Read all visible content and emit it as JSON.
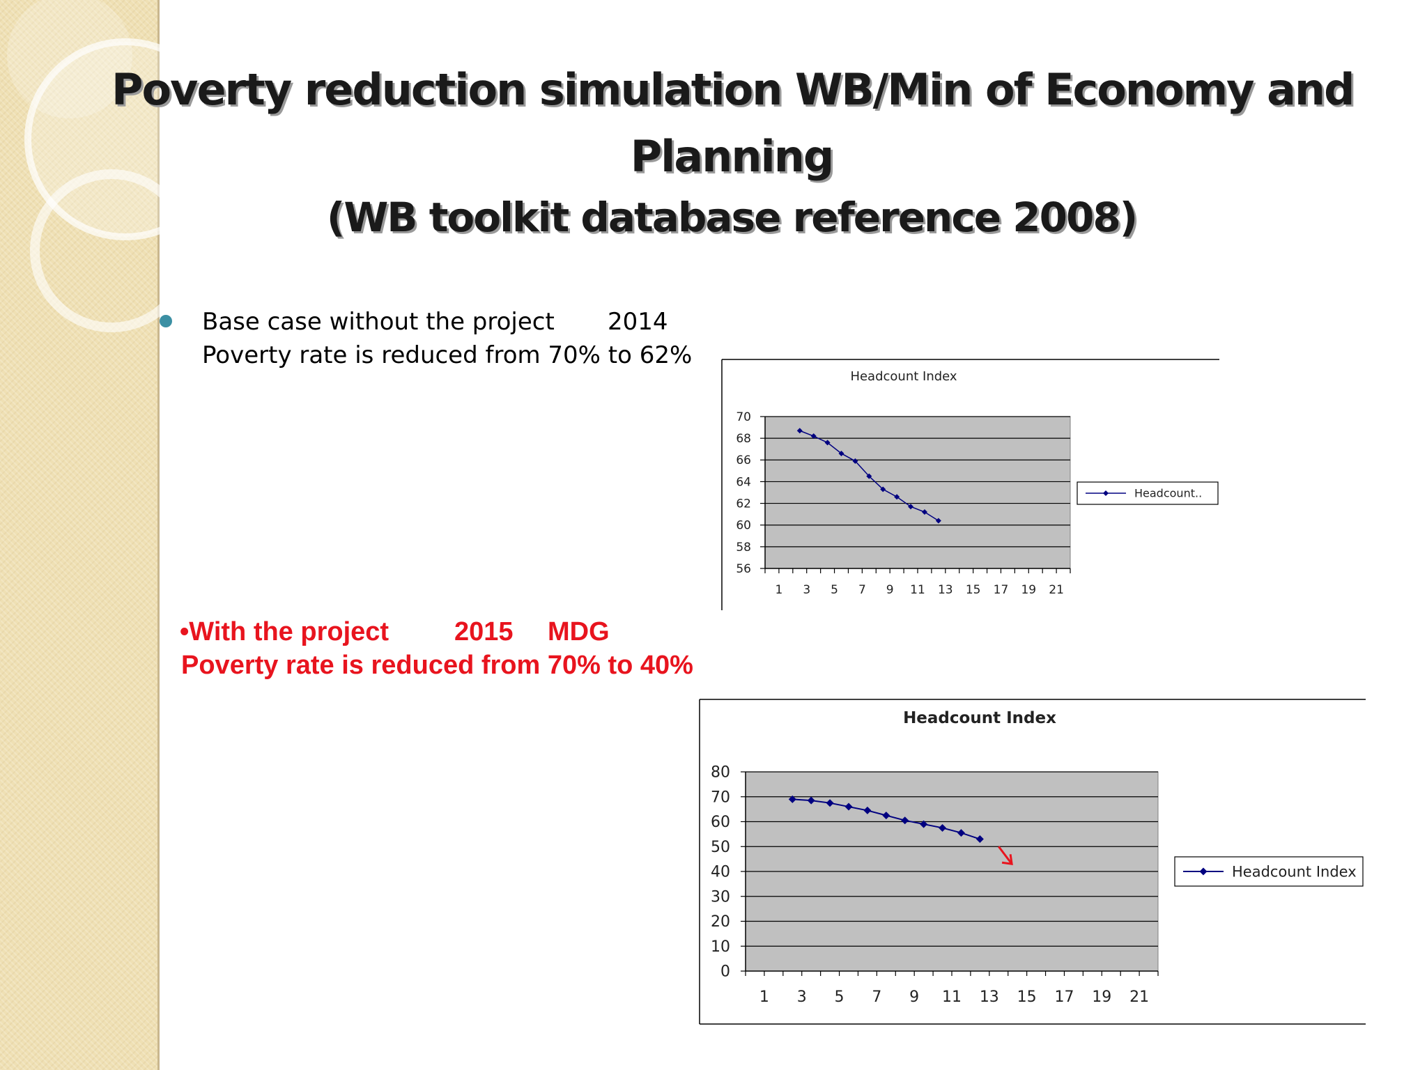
{
  "slide": {
    "title_line_1": "Poverty reduction simulation WB/Min of Economy and",
    "title_line_2": "Planning",
    "title_line_3": "(WB toolkit database reference 2008)",
    "base_case_line_1": "Base case without the project",
    "base_case_year": "2014",
    "base_case_line_2": "Poverty rate is reduced from 70% to 62%",
    "project_line_1": "•With the project",
    "project_year": "2015",
    "project_mdg": "MDG",
    "project_line_2": "Poverty rate is reduced from 70% to 40%"
  },
  "colors": {
    "series": "#000080",
    "plot_bg": "#c0c0c0",
    "accent_red": "#e8141e",
    "bullet": "#3b8fa3"
  },
  "chart_data": [
    {
      "type": "line",
      "title": "Headcount Index",
      "legend": "Headcount..",
      "legend_position": "right",
      "x": [
        3,
        4,
        5,
        6,
        7,
        8,
        9,
        10,
        11,
        12,
        13
      ],
      "series": [
        {
          "name": "Headcount Index",
          "values": [
            68.7,
            68.2,
            67.6,
            66.6,
            65.9,
            64.5,
            63.3,
            62.6,
            61.7,
            61.2,
            60.4
          ]
        }
      ],
      "x_ticks": [
        "1",
        "3",
        "5",
        "7",
        "9",
        "11",
        "13",
        "15",
        "17",
        "19",
        "21"
      ],
      "y_ticks": [
        "56",
        "58",
        "60",
        "62",
        "64",
        "66",
        "68",
        "70"
      ],
      "xlim": [
        0,
        22
      ],
      "ylim": [
        56,
        70
      ],
      "grid": true
    },
    {
      "type": "line",
      "title": "Headcount Index",
      "legend": "Headcount Index",
      "legend_position": "right",
      "x": [
        3,
        4,
        5,
        6,
        7,
        8,
        9,
        10,
        11,
        12,
        13
      ],
      "series": [
        {
          "name": "Headcount Index",
          "values": [
            69,
            68.5,
            67.5,
            66,
            64.5,
            62.5,
            60.5,
            59,
            57.5,
            55.5,
            53
          ]
        }
      ],
      "trend_arrow": {
        "from": [
          13.5,
          50
        ],
        "to": [
          14.2,
          43
        ]
      },
      "x_ticks": [
        "1",
        "3",
        "5",
        "7",
        "9",
        "11",
        "13",
        "15",
        "17",
        "19",
        "21"
      ],
      "y_ticks": [
        "0",
        "10",
        "20",
        "30",
        "40",
        "50",
        "60",
        "70",
        "80"
      ],
      "xlim": [
        0,
        22
      ],
      "ylim": [
        0,
        80
      ],
      "grid": true
    }
  ]
}
